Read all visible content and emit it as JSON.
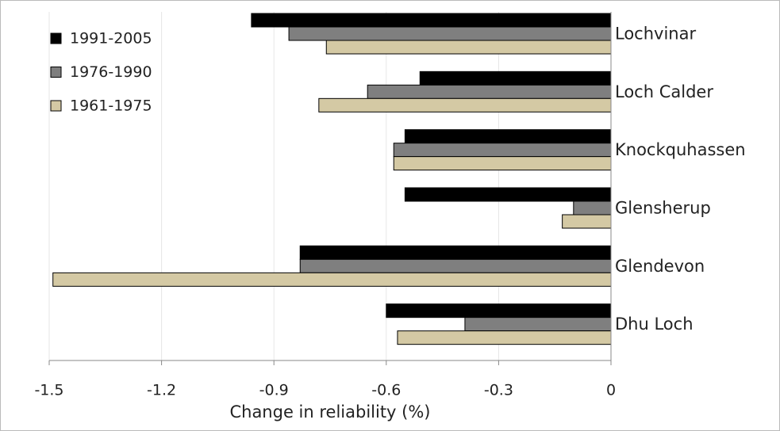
{
  "chart_data": {
    "type": "hbar",
    "xlabel": "Change in reliability (%)",
    "categories": [
      "Lochvinar",
      "Loch Calder",
      "Knockquhassen",
      "Glensherup",
      "Glendevon",
      "Dhu Loch"
    ],
    "series": [
      {
        "name": "1991-2005",
        "color": "#000000",
        "values": [
          -0.96,
          -0.51,
          -0.55,
          -0.55,
          -0.83,
          -0.6
        ]
      },
      {
        "name": "1976-1990",
        "color": "#7f7f7f",
        "values": [
          -0.86,
          -0.65,
          -0.58,
          -0.1,
          -0.83,
          -0.39
        ]
      },
      {
        "name": "1961-1975",
        "color": "#d4c9a4",
        "values": [
          -0.76,
          -0.78,
          -0.58,
          -0.13,
          -1.49,
          -0.57
        ]
      }
    ],
    "xlim": [
      -1.5,
      0
    ],
    "xticks": [
      -1.5,
      -1.2,
      -0.9,
      -0.6,
      -0.3,
      0
    ],
    "grid": true,
    "legend": "upper left"
  }
}
